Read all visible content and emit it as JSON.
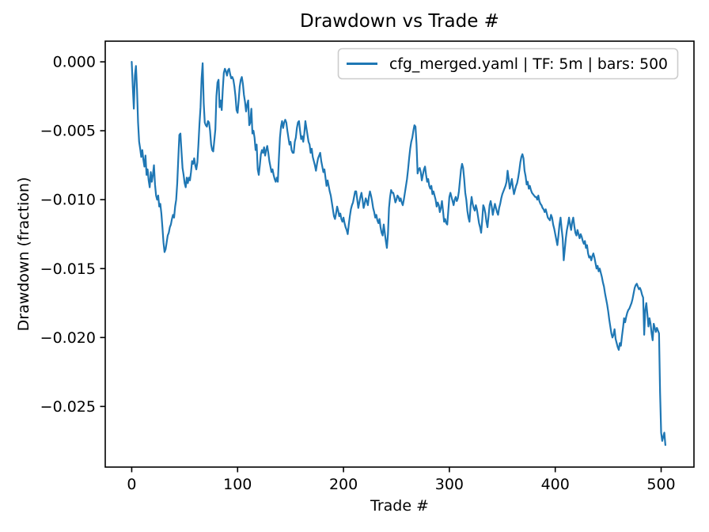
{
  "chart_data": {
    "type": "line",
    "title": "Drawdown vs Trade #",
    "xlabel": "Trade #",
    "ylabel": "Drawdown (fraction)",
    "grid": false,
    "background": "#ffffff",
    "line_color": "#1f77b4",
    "spine_color": "#000000",
    "legend": {
      "position": "upper right",
      "border_color": "#cccccc",
      "entries": [
        "cfg_merged.yaml | TF: 5m | bars: 500"
      ]
    },
    "xlim": [
      -25,
      531
    ],
    "ylim": [
      -0.0294,
      0.0015
    ],
    "xticks": {
      "values": [
        0,
        100,
        200,
        300,
        400,
        500
      ],
      "labels": [
        "0",
        "100",
        "200",
        "300",
        "400",
        "500"
      ]
    },
    "yticks": {
      "values": [
        0.0,
        -0.005,
        -0.01,
        -0.015,
        -0.02,
        -0.025
      ],
      "labels": [
        "0.000",
        "−0.005",
        "−0.010",
        "−0.015",
        "−0.020",
        "−0.025"
      ]
    },
    "series": [
      {
        "name": "cfg_merged.yaml | TF: 5m | bars: 500",
        "x_start": 0,
        "x_step": 1,
        "values": [
          0.0,
          -0.0018,
          -0.0034,
          -0.001,
          -0.0003,
          -0.002,
          -0.0044,
          -0.0058,
          -0.0063,
          -0.0069,
          -0.0064,
          -0.0071,
          -0.0076,
          -0.0068,
          -0.0082,
          -0.0078,
          -0.0086,
          -0.0091,
          -0.008,
          -0.0087,
          -0.0082,
          -0.0075,
          -0.0089,
          -0.0097,
          -0.01,
          -0.0097,
          -0.0105,
          -0.0103,
          -0.011,
          -0.012,
          -0.0131,
          -0.0138,
          -0.0136,
          -0.0131,
          -0.0126,
          -0.0124,
          -0.012,
          -0.0118,
          -0.0114,
          -0.0111,
          -0.0113,
          -0.0105,
          -0.01,
          -0.0088,
          -0.007,
          -0.0053,
          -0.0052,
          -0.0065,
          -0.0077,
          -0.0082,
          -0.0088,
          -0.0091,
          -0.0084,
          -0.0088,
          -0.0084,
          -0.0086,
          -0.008,
          -0.0072,
          -0.0074,
          -0.007,
          -0.0075,
          -0.0078,
          -0.0073,
          -0.006,
          -0.0045,
          -0.0033,
          -0.0012,
          -0.0001,
          -0.003,
          -0.0044,
          -0.0046,
          -0.0047,
          -0.0043,
          -0.0044,
          -0.005,
          -0.006,
          -0.0064,
          -0.0065,
          -0.0057,
          -0.0049,
          -0.0025,
          -0.0015,
          -0.0013,
          -0.0033,
          -0.0028,
          -0.0035,
          -0.002,
          -0.0008,
          -0.0005,
          -0.0007,
          -0.001,
          -0.0006,
          -0.0005,
          -0.0009,
          -0.0012,
          -0.0011,
          -0.0013,
          -0.0018,
          -0.0025,
          -0.0035,
          -0.0037,
          -0.0028,
          -0.0018,
          -0.0013,
          -0.0011,
          -0.0016,
          -0.0024,
          -0.0029,
          -0.0036,
          -0.0031,
          -0.0028,
          -0.0046,
          -0.0044,
          -0.0034,
          -0.0052,
          -0.005,
          -0.0055,
          -0.0064,
          -0.006,
          -0.0078,
          -0.0082,
          -0.0075,
          -0.0067,
          -0.0064,
          -0.0066,
          -0.0062,
          -0.0068,
          -0.0064,
          -0.0061,
          -0.0066,
          -0.0072,
          -0.0076,
          -0.008,
          -0.0078,
          -0.0082,
          -0.0085,
          -0.0087,
          -0.0084,
          -0.0087,
          -0.007,
          -0.0055,
          -0.0047,
          -0.0043,
          -0.0048,
          -0.0044,
          -0.0042,
          -0.0044,
          -0.005,
          -0.0055,
          -0.006,
          -0.0058,
          -0.0064,
          -0.0066,
          -0.0066,
          -0.0058,
          -0.0055,
          -0.0048,
          -0.0044,
          -0.0043,
          -0.005,
          -0.0056,
          -0.0054,
          -0.0058,
          -0.0052,
          -0.0043,
          -0.0048,
          -0.0053,
          -0.0058,
          -0.006,
          -0.0066,
          -0.0063,
          -0.0069,
          -0.0072,
          -0.0075,
          -0.0079,
          -0.0074,
          -0.007,
          -0.0068,
          -0.0066,
          -0.0072,
          -0.0076,
          -0.008,
          -0.0078,
          -0.0084,
          -0.009,
          -0.0086,
          -0.009,
          -0.0094,
          -0.0097,
          -0.0102,
          -0.0107,
          -0.0112,
          -0.0114,
          -0.011,
          -0.0105,
          -0.0108,
          -0.0112,
          -0.011,
          -0.0114,
          -0.0116,
          -0.0113,
          -0.0117,
          -0.012,
          -0.0122,
          -0.0125,
          -0.0118,
          -0.0112,
          -0.0107,
          -0.0104,
          -0.0102,
          -0.0098,
          -0.0094,
          -0.0094,
          -0.01,
          -0.0106,
          -0.0102,
          -0.0098,
          -0.0095,
          -0.01,
          -0.0106,
          -0.0103,
          -0.0099,
          -0.0101,
          -0.0104,
          -0.0098,
          -0.0094,
          -0.0097,
          -0.0101,
          -0.0106,
          -0.0109,
          -0.0113,
          -0.0111,
          -0.0115,
          -0.0117,
          -0.0114,
          -0.012,
          -0.0124,
          -0.0126,
          -0.0118,
          -0.0124,
          -0.013,
          -0.0135,
          -0.0125,
          -0.0106,
          -0.0098,
          -0.0093,
          -0.0095,
          -0.0095,
          -0.0098,
          -0.0102,
          -0.01,
          -0.0097,
          -0.0098,
          -0.0101,
          -0.0099,
          -0.0102,
          -0.0104,
          -0.01,
          -0.0095,
          -0.009,
          -0.0085,
          -0.0078,
          -0.007,
          -0.0063,
          -0.0058,
          -0.0055,
          -0.005,
          -0.0046,
          -0.0047,
          -0.006,
          -0.0081,
          -0.0078,
          -0.0077,
          -0.008,
          -0.0086,
          -0.0082,
          -0.0078,
          -0.0076,
          -0.0082,
          -0.0087,
          -0.0085,
          -0.009,
          -0.0092,
          -0.009,
          -0.0096,
          -0.0094,
          -0.0097,
          -0.01,
          -0.0105,
          -0.0102,
          -0.0104,
          -0.0109,
          -0.0106,
          -0.0101,
          -0.0108,
          -0.0116,
          -0.0114,
          -0.0117,
          -0.0118,
          -0.0108,
          -0.0098,
          -0.0095,
          -0.0098,
          -0.0101,
          -0.0104,
          -0.01,
          -0.0098,
          -0.0101,
          -0.0099,
          -0.0094,
          -0.0086,
          -0.0078,
          -0.0074,
          -0.0077,
          -0.0085,
          -0.0095,
          -0.01,
          -0.0108,
          -0.0113,
          -0.0116,
          -0.0105,
          -0.0098,
          -0.0103,
          -0.0106,
          -0.0108,
          -0.0104,
          -0.0107,
          -0.0112,
          -0.0117,
          -0.012,
          -0.0124,
          -0.0115,
          -0.0104,
          -0.0106,
          -0.011,
          -0.0116,
          -0.012,
          -0.0112,
          -0.0104,
          -0.0101,
          -0.0105,
          -0.0111,
          -0.0107,
          -0.0103,
          -0.0106,
          -0.0109,
          -0.0111,
          -0.0106,
          -0.0103,
          -0.0099,
          -0.0096,
          -0.0094,
          -0.0092,
          -0.009,
          -0.0087,
          -0.0079,
          -0.0085,
          -0.0092,
          -0.0089,
          -0.0085,
          -0.0091,
          -0.0096,
          -0.0093,
          -0.009,
          -0.0088,
          -0.0084,
          -0.0079,
          -0.0073,
          -0.0069,
          -0.0067,
          -0.007,
          -0.0079,
          -0.0083,
          -0.0089,
          -0.0087,
          -0.0092,
          -0.009,
          -0.0093,
          -0.0095,
          -0.0096,
          -0.0097,
          -0.0098,
          -0.0098,
          -0.01,
          -0.0097,
          -0.0101,
          -0.0103,
          -0.0104,
          -0.0106,
          -0.0107,
          -0.0109,
          -0.0107,
          -0.011,
          -0.0113,
          -0.0114,
          -0.0115,
          -0.0111,
          -0.0113,
          -0.0118,
          -0.0121,
          -0.0125,
          -0.0129,
          -0.0133,
          -0.0126,
          -0.0118,
          -0.0113,
          -0.0121,
          -0.0128,
          -0.0144,
          -0.0136,
          -0.0128,
          -0.0122,
          -0.0118,
          -0.0113,
          -0.0118,
          -0.0122,
          -0.0116,
          -0.0113,
          -0.0119,
          -0.0124,
          -0.0126,
          -0.0122,
          -0.0125,
          -0.0128,
          -0.0125,
          -0.0127,
          -0.013,
          -0.0132,
          -0.013,
          -0.0135,
          -0.0133,
          -0.0139,
          -0.0142,
          -0.0141,
          -0.0144,
          -0.0141,
          -0.0139,
          -0.0142,
          -0.0146,
          -0.015,
          -0.0148,
          -0.0152,
          -0.015,
          -0.0153,
          -0.0156,
          -0.016,
          -0.0163,
          -0.0168,
          -0.0172,
          -0.0176,
          -0.0181,
          -0.0187,
          -0.0192,
          -0.0197,
          -0.02,
          -0.0198,
          -0.0194,
          -0.0201,
          -0.0204,
          -0.0207,
          -0.0209,
          -0.0204,
          -0.0206,
          -0.0199,
          -0.0193,
          -0.0186,
          -0.0189,
          -0.0185,
          -0.0182,
          -0.018,
          -0.0179,
          -0.0177,
          -0.0175,
          -0.0172,
          -0.0168,
          -0.0164,
          -0.0162,
          -0.0161,
          -0.0163,
          -0.0165,
          -0.0164,
          -0.0166,
          -0.0169,
          -0.0171,
          -0.0198,
          -0.018,
          -0.0175,
          -0.0183,
          -0.0192,
          -0.0186,
          -0.019,
          -0.0197,
          -0.0202,
          -0.019,
          -0.0193,
          -0.0196,
          -0.0193,
          -0.0195,
          -0.0197,
          -0.024,
          -0.0269,
          -0.0275,
          -0.0272,
          -0.0269,
          -0.0278
        ]
      }
    ]
  }
}
